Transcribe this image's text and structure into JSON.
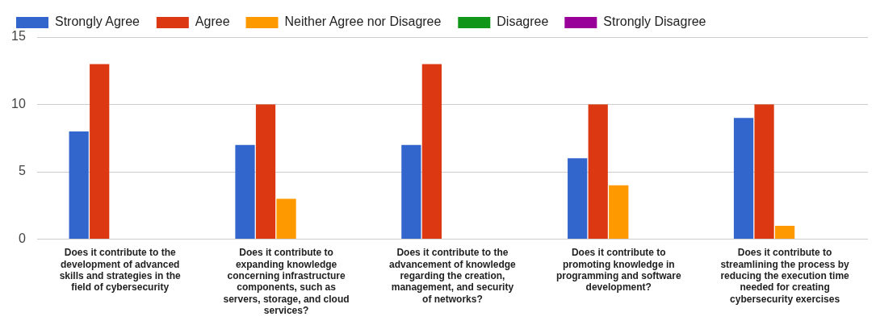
{
  "chart_data": {
    "type": "bar",
    "categories": [
      "Does it contribute to the development of advanced skills and strategies in the field of cybersecurity",
      "Does it contribute to expanding knowledge concerning infrastructure components, such as servers, storage, and cloud services?",
      "Does it contribute to the advancement of knowledge regarding the creation, management, and security of networks?",
      "Does it contribute to promoting knowledge in programming and software development?",
      "Does it contribute to streamlining the process by reducing the execution time needed for creating cybersecurity exercises"
    ],
    "series": [
      {
        "name": "Strongly Agree",
        "color": "#3366cc",
        "values": [
          8,
          7,
          7,
          6,
          9
        ]
      },
      {
        "name": "Agree",
        "color": "#dc3912",
        "values": [
          13,
          10,
          13,
          10,
          10
        ]
      },
      {
        "name": "Neither Agree nor Disagree",
        "color": "#ff9900",
        "values": [
          0,
          3,
          0,
          4,
          1
        ]
      },
      {
        "name": "Disagree",
        "color": "#109618",
        "values": [
          0,
          0,
          0,
          0,
          0
        ]
      },
      {
        "name": "Strongly Disagree",
        "color": "#990099",
        "values": [
          0,
          0,
          0,
          0,
          0
        ]
      }
    ],
    "ylim": [
      0,
      15
    ],
    "yticks": [
      0,
      5,
      10,
      15
    ],
    "grid": "y",
    "legend": "top left"
  }
}
